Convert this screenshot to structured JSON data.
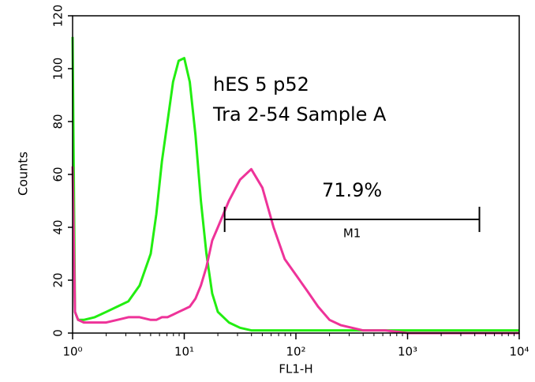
{
  "chart_data": {
    "type": "histogram-overlay",
    "xlabel": "FL1-H",
    "ylabel": "Counts",
    "xscale": "log",
    "xlim": [
      1,
      10000
    ],
    "ylim": [
      0,
      120
    ],
    "xticks": [
      {
        "value": 1,
        "label": "10⁰"
      },
      {
        "value": 10,
        "label": "10¹"
      },
      {
        "value": 100,
        "label": "10²"
      },
      {
        "value": 1000,
        "label": "10³"
      },
      {
        "value": 10000,
        "label": "10⁴"
      }
    ],
    "yticks": [
      0,
      20,
      40,
      60,
      80,
      100,
      120
    ],
    "annotations": [
      "hES 5 p52",
      "Tra 2-54 Sample A"
    ],
    "x": [
      1,
      1.05,
      1.12,
      1.26,
      1.58,
      2.0,
      2.51,
      3.16,
      3.98,
      5.01,
      5.62,
      6.31,
      7.08,
      7.94,
      8.91,
      10,
      11.2,
      12.6,
      14.1,
      15.8,
      17.8,
      20.0,
      25.1,
      31.6,
      39.8,
      50.1,
      63.1,
      79.4,
      100,
      126,
      158,
      200,
      251,
      398,
      631,
      1000,
      3162,
      10000
    ],
    "series": [
      {
        "color": "#22ee11",
        "values": [
          112,
          8,
          5,
          5,
          6,
          8,
          10,
          12,
          18,
          30,
          45,
          65,
          80,
          95,
          103,
          104,
          95,
          75,
          50,
          30,
          15,
          8,
          4,
          2,
          1,
          1,
          1,
          1,
          1,
          1,
          1,
          1,
          1,
          1,
          1,
          1,
          1,
          1
        ]
      },
      {
        "color": "#ee3399",
        "values": [
          63,
          8,
          5,
          4,
          4,
          4,
          5,
          6,
          6,
          5,
          5,
          6,
          6,
          7,
          8,
          9,
          10,
          13,
          18,
          25,
          35,
          40,
          50,
          58,
          62,
          55,
          40,
          28,
          22,
          16,
          10,
          5,
          3,
          1,
          1,
          0,
          0,
          0
        ]
      }
    ],
    "marker": {
      "label": "M1",
      "percent_label": "71.9%",
      "range": [
        23,
        4400
      ],
      "y": 43
    }
  }
}
